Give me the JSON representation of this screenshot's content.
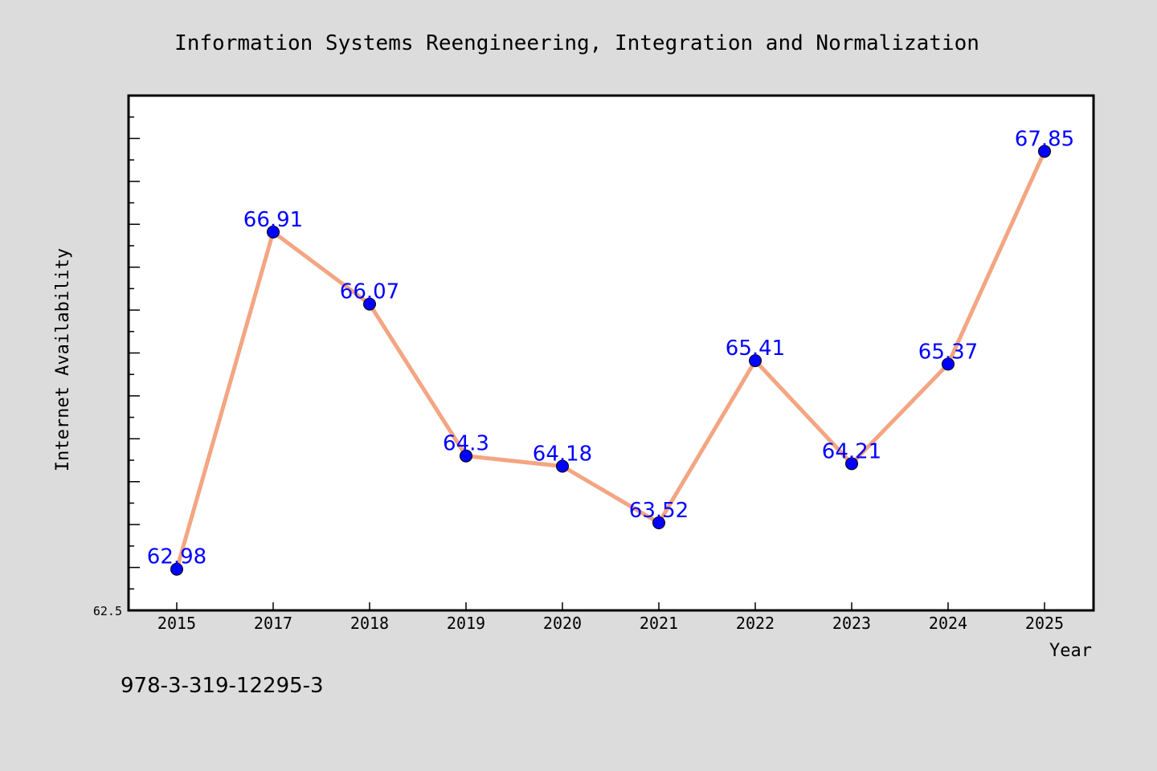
{
  "chart_data": {
    "type": "line",
    "title": "Information Systems Reengineering, Integration and Normalization",
    "xlabel": "Year",
    "ylabel": "Internet Availability",
    "categories": [
      "2015",
      "2017",
      "2018",
      "2019",
      "2020",
      "2021",
      "2022",
      "2023",
      "2024",
      "2025"
    ],
    "series": [
      {
        "values": [
          62.98,
          66.91,
          66.07,
          64.3,
          64.18,
          63.52,
          65.41,
          64.21,
          65.37,
          67.85
        ]
      }
    ],
    "data_labels": [
      "62.98",
      "66.91",
      "66.07",
      "64.3",
      "64.18",
      "63.52",
      "65.41",
      "64.21",
      "65.37",
      "67.85"
    ],
    "ylim": [
      62.5,
      68.5
    ],
    "y_min_label": "62.5",
    "grid": false,
    "legend": "none",
    "colors": {
      "line": "#f4a582",
      "marker": "#0000ff",
      "label": "#0000ff",
      "background": "#dcdcdc",
      "plot_background": "#ffffff"
    }
  },
  "footer_text": "978-3-319-12295-3"
}
